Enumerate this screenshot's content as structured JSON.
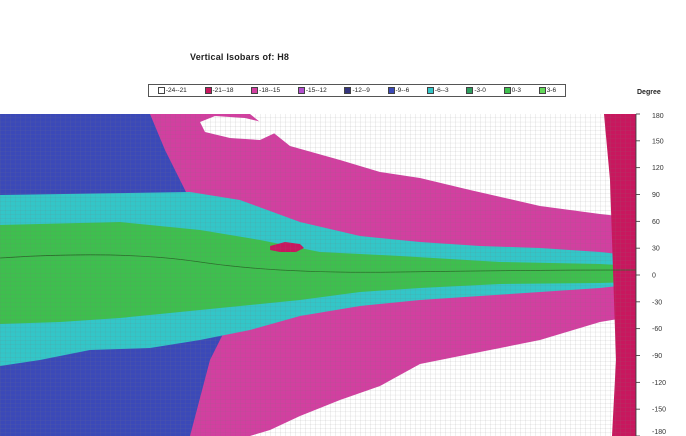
{
  "chart_data": {
    "type": "heatmap",
    "title": "Vertical Isobars of: H8",
    "ylabel": "Degree",
    "xlabel": "",
    "ylim": [
      -180,
      180
    ],
    "y_ticks": [
      180,
      150,
      120,
      90,
      60,
      30,
      0,
      -30,
      -60,
      -90,
      -120,
      -150,
      -180
    ],
    "y_tick_labels": [
      "180",
      "150",
      "120",
      "90",
      "60",
      "30",
      "0",
      "-30",
      "-60",
      "-90",
      "-120",
      "-150",
      "-180"
    ],
    "legend": [
      {
        "label": "-24--21",
        "color": "#ffffff"
      },
      {
        "label": "-21--18",
        "color": "#c8175e"
      },
      {
        "label": "-18--15",
        "color": "#d23fa0"
      },
      {
        "label": "-15--12",
        "color": "#b34fcf"
      },
      {
        "label": "-12--9",
        "color": "#34357d"
      },
      {
        "label": "-9--6",
        "color": "#3b49b8"
      },
      {
        "label": "-6--3",
        "color": "#33c6c8"
      },
      {
        "label": "-3-0",
        "color": "#2e9d5e"
      },
      {
        "label": "0-3",
        "color": "#3ebf4e"
      },
      {
        "label": "3-6",
        "color": "#63d85a"
      }
    ],
    "regions": [
      {
        "level": "-9--6",
        "color": "#3b49b8",
        "boundary": []
      },
      {
        "level": "-18--15",
        "color": "#d23fa0",
        "boundary": []
      },
      {
        "level": "-24--21",
        "color": "#ffffff",
        "boundary": []
      },
      {
        "level": "-6--3",
        "color": "#33c6c8",
        "boundary": []
      },
      {
        "level": "0-3",
        "color": "#3ebf4e",
        "boundary": []
      },
      {
        "level": "-21--18",
        "color": "#c8175e",
        "boundary": []
      }
    ],
    "grid": true,
    "legend_position": "top"
  }
}
